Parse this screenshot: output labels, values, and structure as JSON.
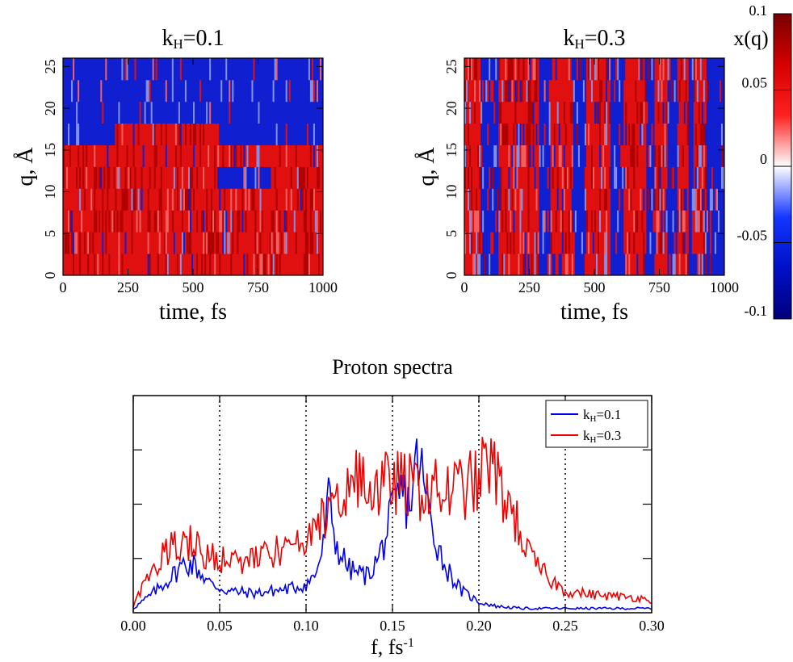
{
  "colorbar": {
    "label": "x(q)",
    "ticks": [
      {
        "value": 0.1,
        "label": "0.1"
      },
      {
        "value": 0.05,
        "label": "0.05"
      },
      {
        "value": 0,
        "label": "0"
      },
      {
        "value": -0.05,
        "label": "-0.05"
      },
      {
        "value": -0.1,
        "label": "-0.1"
      }
    ],
    "range": [
      -0.1,
      0.1
    ],
    "colors": [
      "#00007a",
      "#0010c8",
      "#1436ff",
      "#ffffff",
      "#ff2020",
      "#d40000",
      "#780000"
    ]
  },
  "heatmap_colors": {
    "low": "#1020d0",
    "high": "#e01010",
    "light_blue": "#8090e8",
    "light_red": "#f06060",
    "dark_red": "#b00000"
  },
  "line_colors": {
    "series1": "#0000ee",
    "series2": "#ee0000"
  },
  "chart_data": [
    {
      "type": "heatmap",
      "title_main": "k",
      "title_sub": "H",
      "title_rest": "=0.1",
      "xlabel": "time,  fs",
      "ylabel_main": "q,  ",
      "ylabel_unit": "Å",
      "xlim": [
        0,
        1000
      ],
      "ylim": [
        0,
        26
      ],
      "xticks": [
        0,
        250,
        500,
        750,
        1000
      ],
      "yticks": [
        0,
        5,
        10,
        15,
        20,
        25
      ],
      "rows": 10,
      "cols": 160,
      "row_sign": [
        [
          1,
          1,
          1,
          1,
          1
        ],
        [
          1,
          1,
          1,
          1,
          1
        ],
        [
          1,
          1,
          1,
          1,
          1
        ],
        [
          1,
          1,
          1,
          0.6,
          1
        ],
        [
          1,
          1,
          1,
          -1,
          1
        ],
        [
          1,
          1,
          1,
          1,
          1
        ],
        [
          -1,
          1,
          1,
          -1,
          -1
        ],
        [
          -1,
          -1,
          -1,
          -1,
          -1
        ],
        [
          -1,
          -1,
          -1,
          -1,
          -1
        ],
        [
          -1,
          -1,
          -1,
          -1,
          -1
        ]
      ]
    },
    {
      "type": "heatmap",
      "title_main": "k",
      "title_sub": "H",
      "title_rest": "=0.3",
      "xlabel": "time,  fs",
      "ylabel_main": "q,  ",
      "ylabel_unit": "Å",
      "xlim": [
        0,
        1000
      ],
      "ylim": [
        0,
        26
      ],
      "xticks": [
        0,
        250,
        500,
        750,
        1000
      ],
      "yticks": [
        0,
        5,
        10,
        15,
        20,
        25
      ],
      "rows": 10,
      "cols": 160,
      "stripes": [
        [
          0,
          60,
          0.6
        ],
        [
          130,
          290,
          0.9
        ],
        [
          330,
          420,
          1.0
        ],
        [
          470,
          560,
          0.7
        ],
        [
          610,
          700,
          1.0
        ],
        [
          730,
          780,
          0.8
        ],
        [
          820,
          860,
          0.7
        ],
        [
          880,
          930,
          0.6
        ]
      ]
    },
    {
      "type": "line",
      "title": "Proton spectra",
      "xlabel_main": "f,  fs",
      "xlabel_sup": "-1",
      "xlim": [
        0,
        0.3
      ],
      "ylim": [
        0,
        1
      ],
      "xticks": [
        "0.00",
        "0.05",
        "0.10",
        "0.15",
        "0.20",
        "0.25",
        "0.30"
      ],
      "dotted_lines": [
        0.05,
        0.1,
        0.15,
        0.2,
        0.25
      ],
      "legend_position": "top-right",
      "series": [
        {
          "name_main": "k",
          "name_sub": "H",
          "name_rest": "=0.1",
          "key_points": [
            [
              0,
              0.02
            ],
            [
              0.01,
              0.08
            ],
            [
              0.02,
              0.15
            ],
            [
              0.03,
              0.23
            ],
            [
              0.035,
              0.22
            ],
            [
              0.045,
              0.13
            ],
            [
              0.055,
              0.1
            ],
            [
              0.07,
              0.09
            ],
            [
              0.09,
              0.11
            ],
            [
              0.1,
              0.13
            ],
            [
              0.105,
              0.17
            ],
            [
              0.11,
              0.3
            ],
            [
              0.113,
              0.52
            ],
            [
              0.118,
              0.3
            ],
            [
              0.125,
              0.2
            ],
            [
              0.135,
              0.17
            ],
            [
              0.142,
              0.25
            ],
            [
              0.15,
              0.45
            ],
            [
              0.155,
              0.55
            ],
            [
              0.16,
              0.5
            ],
            [
              0.165,
              0.72
            ],
            [
              0.17,
              0.5
            ],
            [
              0.175,
              0.35
            ],
            [
              0.18,
              0.22
            ],
            [
              0.19,
              0.1
            ],
            [
              0.2,
              0.05
            ],
            [
              0.21,
              0.03
            ],
            [
              0.225,
              0.02
            ],
            [
              0.25,
              0.02
            ],
            [
              0.3,
              0.02
            ]
          ]
        },
        {
          "name_main": "k",
          "name_sub": "H",
          "name_rest": "=0.3",
          "key_points": [
            [
              0,
              0.03
            ],
            [
              0.01,
              0.2
            ],
            [
              0.02,
              0.28
            ],
            [
              0.03,
              0.34
            ],
            [
              0.04,
              0.28
            ],
            [
              0.05,
              0.25
            ],
            [
              0.06,
              0.23
            ],
            [
              0.07,
              0.25
            ],
            [
              0.08,
              0.27
            ],
            [
              0.09,
              0.3
            ],
            [
              0.1,
              0.3
            ],
            [
              0.11,
              0.45
            ],
            [
              0.12,
              0.55
            ],
            [
              0.13,
              0.6
            ],
            [
              0.14,
              0.56
            ],
            [
              0.15,
              0.6
            ],
            [
              0.16,
              0.58
            ],
            [
              0.17,
              0.57
            ],
            [
              0.18,
              0.55
            ],
            [
              0.19,
              0.58
            ],
            [
              0.2,
              0.6
            ],
            [
              0.205,
              0.72
            ],
            [
              0.21,
              0.62
            ],
            [
              0.22,
              0.45
            ],
            [
              0.23,
              0.25
            ],
            [
              0.24,
              0.16
            ],
            [
              0.25,
              0.1
            ],
            [
              0.27,
              0.08
            ],
            [
              0.29,
              0.07
            ],
            [
              0.3,
              0.06
            ]
          ]
        }
      ]
    }
  ]
}
